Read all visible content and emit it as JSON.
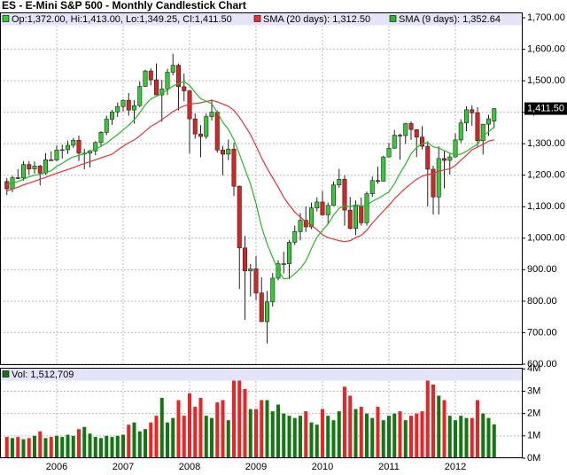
{
  "chart_data": {
    "type": "candlestick",
    "title": "ES - E-Mini S&P 500 - Monthly Candlestick Chart",
    "ohlc_label": "Op:1,372.00, Hi:1,413.00, Lo:1,349.25, Cl:1,411.50",
    "categories": [
      null,
      null,
      null,
      null,
      null,
      null,
      null,
      null,
      null,
      "2006",
      null,
      null,
      null,
      null,
      null,
      null,
      null,
      null,
      null,
      null,
      null,
      "2007",
      null,
      null,
      null,
      null,
      null,
      null,
      null,
      null,
      null,
      null,
      null,
      "2008",
      null,
      null,
      null,
      null,
      null,
      null,
      null,
      null,
      null,
      null,
      null,
      "2009",
      null,
      null,
      null,
      null,
      null,
      null,
      null,
      null,
      null,
      null,
      null,
      "2010",
      null,
      null,
      null,
      null,
      null,
      null,
      null,
      null,
      null,
      null,
      null,
      "2011",
      null,
      null,
      null,
      null,
      null,
      null,
      null,
      null,
      null,
      null,
      null,
      "2012",
      null,
      null,
      null,
      null,
      null,
      null,
      null
    ],
    "open": [
      1180,
      1157,
      1192,
      1191,
      1234,
      1220,
      1229,
      1207,
      1249,
      1248,
      1280,
      1281,
      1295,
      1311,
      1270,
      1270,
      1277,
      1304,
      1336,
      1378,
      1401,
      1418,
      1438,
      1407,
      1421,
      1482,
      1531,
      1503,
      1455,
      1474,
      1527,
      1549,
      1481,
      1468,
      1379,
      1331,
      1323,
      1386,
      1400,
      1280,
      1267,
      1283,
      1165,
      969,
      896,
      903,
      826,
      735,
      798,
      873,
      919,
      919,
      987,
      1021,
      1057,
      1036,
      1096,
      1115,
      1074,
      1104,
      1169,
      1187,
      1089,
      1031,
      1102,
      1049,
      1141,
      1183,
      1181,
      1258,
      1286,
      1327,
      1326,
      1364,
      1345,
      1321,
      1292,
      1219,
      1131,
      1253,
      1247,
      1258,
      1312,
      1366,
      1408,
      1398,
      1310,
      1362,
      1372
    ],
    "high": [
      1191,
      1199,
      1219,
      1245,
      1245,
      1244,
      1233,
      1270,
      1276,
      1295,
      1297,
      1310,
      1318,
      1326,
      1284,
      1280,
      1308,
      1340,
      1389,
      1407,
      1431,
      1441,
      1461,
      1438,
      1498,
      1535,
      1540,
      1555,
      1503,
      1538,
      1586,
      1555,
      1523,
      1471,
      1396,
      1359,
      1396,
      1440,
      1405,
      1293,
      1313,
      1303,
      1167,
      1007,
      918,
      944,
      876,
      832,
      889,
      930,
      957,
      994,
      1040,
      1080,
      1101,
      1113,
      1130,
      1150,
      1113,
      1180,
      1220,
      1200,
      1131,
      1120,
      1129,
      1148,
      1196,
      1227,
      1262,
      1303,
      1344,
      1332,
      1366,
      1371,
      1346,
      1356,
      1308,
      1230,
      1292,
      1278,
      1268,
      1333,
      1378,
      1419,
      1422,
      1416,
      1363,
      1392,
      1413
    ],
    "low": [
      1137,
      1146,
      1188,
      1183,
      1201,
      1205,
      1168,
      1201,
      1246,
      1245,
      1253,
      1268,
      1287,
      1245,
      1219,
      1225,
      1264,
      1290,
      1327,
      1360,
      1385,
      1403,
      1389,
      1364,
      1416,
      1481,
      1485,
      1454,
      1370,
      1455,
      1517,
      1406,
      1435,
      1270,
      1316,
      1257,
      1315,
      1374,
      1272,
      1200,
      1248,
      1134,
      839,
      741,
      815,
      804,
      735,
      666,
      783,
      866,
      888,
      870,
      978,
      993,
      1020,
      1029,
      1085,
      1071,
      1044,
      1102,
      1160,
      1040,
      1028,
      1010,
      1040,
      1040,
      1131,
      1173,
      1180,
      1257,
      1283,
      1249,
      1299,
      1312,
      1258,
      1282,
      1101,
      1075,
      1075,
      1158,
      1202,
      1258,
      1302,
      1340,
      1357,
      1291,
      1266,
      1325,
      1349.25
    ],
    "close": [
      1157,
      1192,
      1191,
      1234,
      1220,
      1229,
      1207,
      1249,
      1248,
      1280,
      1281,
      1295,
      1311,
      1270,
      1270,
      1277,
      1304,
      1336,
      1378,
      1401,
      1418,
      1438,
      1407,
      1421,
      1482,
      1531,
      1503,
      1455,
      1474,
      1527,
      1549,
      1481,
      1468,
      1379,
      1331,
      1323,
      1386,
      1400,
      1280,
      1267,
      1283,
      1165,
      969,
      896,
      903,
      826,
      735,
      798,
      873,
      919,
      919,
      987,
      1021,
      1057,
      1036,
      1096,
      1115,
      1074,
      1104,
      1169,
      1187,
      1089,
      1031,
      1102,
      1049,
      1141,
      1183,
      1181,
      1258,
      1286,
      1327,
      1326,
      1364,
      1345,
      1321,
      1292,
      1219,
      1131,
      1253,
      1247,
      1258,
      1312,
      1366,
      1408,
      1398,
      1310,
      1362,
      1379,
      1411.5
    ],
    "up_color": "#33cc33",
    "down_color": "#dd2222",
    "series": [
      {
        "name": "SMA (20 days): 1,312.50",
        "color": "#e83030",
        "values": [
          1150,
          1156,
          1162,
          1169,
          1175,
          1181,
          1187,
          1193,
          1200,
          1206,
          1212,
          1218,
          1224,
          1231,
          1237,
          1243,
          1249,
          1255,
          1261,
          1266.5,
          1280,
          1292,
          1303,
          1312,
          1325,
          1340,
          1355,
          1365,
          1377,
          1389,
          1402,
          1412,
          1420,
          1425,
          1428,
          1430,
          1434,
          1438,
          1433,
          1426,
          1419,
          1406,
          1384,
          1357,
          1329,
          1293,
          1255,
          1222,
          1192,
          1162,
          1130,
          1105,
          1083,
          1067,
          1052,
          1041,
          1027,
          1011,
          1002,
          997,
          992,
          989,
          992,
          1002,
          1009,
          1025,
          1048,
          1067,
          1086,
          1104,
          1125,
          1142,
          1159,
          1173,
          1187,
          1197,
          1202,
          1205,
          1213,
          1217,
          1220,
          1231,
          1248,
          1263,
          1281,
          1289,
          1298,
          1308,
          1312.5
        ]
      },
      {
        "name": "SMA (9 days): 1,352.64",
        "color": "#22bb22",
        "values": [
          1170,
          1175,
          1180,
          1187,
          1195,
          1200,
          1203,
          1208,
          1214,
          1228,
          1238,
          1249,
          1258,
          1263,
          1268,
          1276,
          1282,
          1292,
          1302,
          1316,
          1329,
          1344,
          1359,
          1376,
          1398,
          1424,
          1442,
          1451,
          1459,
          1471,
          1483,
          1491,
          1497,
          1485,
          1463,
          1443,
          1435,
          1427,
          1400,
          1368,
          1346,
          1313,
          1267,
          1219,
          1172,
          1110,
          1036,
          982,
          939,
          898,
          871,
          873,
          887,
          904,
          927,
          967,
          1003,
          1025,
          1045,
          1073,
          1095,
          1103,
          1100,
          1107,
          1102,
          1105,
          1117,
          1126,
          1136,
          1147,
          1173,
          1206,
          1235,
          1268,
          1288,
          1300,
          1304,
          1290,
          1286,
          1278,
          1270,
          1264,
          1267,
          1276,
          1288,
          1298,
          1324,
          1338,
          1352.64
        ]
      }
    ],
    "last_label": "1,411.50",
    "ylim": [
      597,
      1717
    ],
    "yticks": [
      {
        "value": 600,
        "label": "600.00"
      },
      {
        "value": 700,
        "label": "700.00"
      },
      {
        "value": 800,
        "label": "800.00"
      },
      {
        "value": 900,
        "label": "900.00"
      },
      {
        "value": 1000,
        "label": "1,000.00"
      },
      {
        "value": 1100,
        "label": "1,100.00"
      },
      {
        "value": 1200,
        "label": "1,200.00"
      },
      {
        "value": 1300,
        "label": "1,300.00"
      },
      {
        "value": 1400,
        "label": "1,400.00"
      },
      {
        "value": 1500,
        "label": "1,500.00"
      },
      {
        "value": 1600,
        "label": "1,600.00"
      },
      {
        "value": 1700,
        "label": "1,700.00"
      }
    ],
    "grid": true,
    "volume": {
      "label": "Vol: 1,512,709",
      "values": [
        0.95,
        0.9,
        0.95,
        0.85,
        0.9,
        1.0,
        1.2,
        0.9,
        0.95,
        1.0,
        0.95,
        1.05,
        1.0,
        1.3,
        1.4,
        1.1,
        0.95,
        0.9,
        1.0,
        0.95,
        1.0,
        1.05,
        1.5,
        1.6,
        1.2,
        1.3,
        1.6,
        1.9,
        2.7,
        1.6,
        1.8,
        2.6,
        1.9,
        2.9,
        2.3,
        2.7,
        1.9,
        1.8,
        2.5,
        2.6,
        1.7,
        3.7,
        3.7,
        3.1,
        2.2,
        2.2,
        2.6,
        2.6,
        2.1,
        2.4,
        2.0,
        1.9,
        1.8,
        1.9,
        2.1,
        1.6,
        1.5,
        2.2,
        1.9,
        1.7,
        2.1,
        3.2,
        2.8,
        2.2,
        2.3,
        2.0,
        1.8,
        2.3,
        1.7,
        1.9,
        2.0,
        2.1,
        1.7,
        1.9,
        2.0,
        2.1,
        3.7,
        3.3,
        2.8,
        2.6,
        1.9,
        1.7,
        1.9,
        1.8,
        1.8,
        2.6,
        2.0,
        1.8,
        1.512709
      ],
      "ylim": [
        0,
        4.05
      ],
      "yticks": [
        {
          "value": 0,
          "label": "0M"
        },
        {
          "value": 1,
          "label": "1M"
        },
        {
          "value": 2,
          "label": "2M"
        },
        {
          "value": 3,
          "label": "3M"
        },
        {
          "value": 4,
          "label": "4M"
        }
      ],
      "up_color": "#117711",
      "down_color": "#ee2222"
    }
  }
}
